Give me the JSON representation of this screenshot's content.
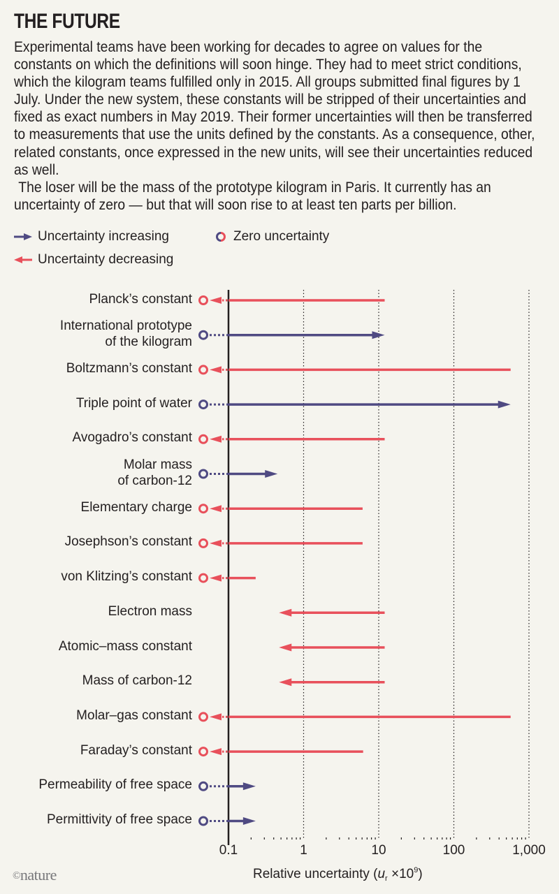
{
  "title": "THE FUTURE",
  "intro": {
    "paragraph1": "Experimental teams have been working for decades to agree on values for the constants on which the definitions will soon hinge. They had to meet strict conditions, which the kilogram teams fulfilled only in 2015. All groups submitted final figures by 1 July.  Under the new system, these constants will be stripped of their uncertainties and fixed as exact numbers in May 2019. Their former uncertainties will then be transferred to measurements that use the units defined by the constants. As a consequence, other, related constants, once expressed in the new units, will see their uncertainties reduced as well.",
    "paragraph2": "The loser will be the mass of the prototype kilogram in Paris. It currently has an uncertainty of zero — but that will soon rise to at least ten parts per billion."
  },
  "legend": {
    "increasing": "Uncertainty increasing",
    "decreasing": "Uncertainty decreasing",
    "zero": "Zero uncertainty"
  },
  "colors": {
    "increasing": "#4f4a82",
    "decreasing": "#e8505b",
    "background": "#f5f4ee",
    "axis": "#231f20"
  },
  "chart_data": {
    "type": "arrow-range",
    "xscale": "log",
    "xlim": [
      0.1,
      1000
    ],
    "xticks": [
      0.1,
      1,
      10,
      100,
      1000
    ],
    "xtick_labels": [
      "0.1",
      "1",
      "10",
      "100",
      "1,000"
    ],
    "xlabel_prefix": "Relative uncertainty (",
    "xlabel_var": "u",
    "xlabel_sub": "r",
    "xlabel_mult": " ×10",
    "xlabel_exp": "9",
    "xlabel_suffix": ")",
    "grid": "vertical dotted at decades",
    "legend_position": "top-left",
    "rows": [
      {
        "label": [
          "Planck’s constant"
        ],
        "direction": "decreasing",
        "from": 12,
        "to": 0,
        "zero_marker": true
      },
      {
        "label": [
          "International prototype",
          "of the kilogram"
        ],
        "direction": "increasing",
        "from": 0,
        "to": 12,
        "zero_marker": true
      },
      {
        "label": [
          "Boltzmann’s constant"
        ],
        "direction": "decreasing",
        "from": 570,
        "to": 0,
        "zero_marker": true
      },
      {
        "label": [
          "Triple point of water"
        ],
        "direction": "increasing",
        "from": 0,
        "to": 570,
        "zero_marker": true
      },
      {
        "label": [
          "Avogadro’s constant"
        ],
        "direction": "decreasing",
        "from": 12,
        "to": 0,
        "zero_marker": true
      },
      {
        "label": [
          "Molar mass",
          "of carbon-12"
        ],
        "direction": "increasing",
        "from": 0,
        "to": 0.45,
        "zero_marker": true
      },
      {
        "label": [
          "Elementary charge"
        ],
        "direction": "decreasing",
        "from": 6.1,
        "to": 0,
        "zero_marker": true
      },
      {
        "label": [
          "Josephson’s constant"
        ],
        "direction": "decreasing",
        "from": 6.1,
        "to": 0,
        "zero_marker": true
      },
      {
        "label": [
          "von Klitzing’s constant"
        ],
        "direction": "decreasing",
        "from": 0.23,
        "to": 0,
        "zero_marker": true
      },
      {
        "label": [
          "Electron mass"
        ],
        "direction": "decreasing",
        "from": 12,
        "to": 0.47,
        "zero_marker": false
      },
      {
        "label": [
          "Atomic–mass constant"
        ],
        "direction": "decreasing",
        "from": 12,
        "to": 0.47,
        "zero_marker": false
      },
      {
        "label": [
          "Mass of carbon-12"
        ],
        "direction": "decreasing",
        "from": 12,
        "to": 0.47,
        "zero_marker": false
      },
      {
        "label": [
          "Molar–gas constant"
        ],
        "direction": "decreasing",
        "from": 570,
        "to": 0,
        "zero_marker": true
      },
      {
        "label": [
          "Faraday’s constant"
        ],
        "direction": "decreasing",
        "from": 6.2,
        "to": 0,
        "zero_marker": true
      },
      {
        "label": [
          "Permeability of free space"
        ],
        "direction": "increasing",
        "from": 0,
        "to": 0.23,
        "zero_marker": true
      },
      {
        "label": [
          "Permittivity of free space"
        ],
        "direction": "increasing",
        "from": 0,
        "to": 0.23,
        "zero_marker": true
      }
    ]
  },
  "footer": {
    "copyright": "©",
    "brand": "nature"
  }
}
